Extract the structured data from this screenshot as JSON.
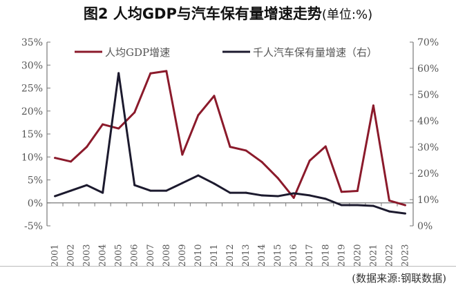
{
  "title": "图2 人均GDP与汽车保有量增速走势",
  "title_unit": "(单位:%)",
  "source": "(数据来源:钢联数据)",
  "chart_data": {
    "type": "line",
    "title": "图2 人均GDP与汽车保有量增速走势(单位:%)",
    "categories": [
      "2001",
      "2002",
      "2003",
      "2004",
      "2005",
      "2006",
      "2007",
      "2008",
      "2009",
      "2010",
      "2011",
      "2012",
      "2013",
      "2014",
      "2015",
      "2016",
      "2017",
      "2018",
      "2019",
      "2020",
      "2021",
      "2022",
      "2023"
    ],
    "left_axis": {
      "ylim": [
        -5,
        35
      ],
      "ticks": [
        "-5%",
        "0%",
        "5%",
        "10%",
        "15%",
        "20%",
        "25%",
        "30%",
        "35%"
      ]
    },
    "right_axis": {
      "ylim": [
        0,
        70
      ],
      "ticks": [
        "0%",
        "10%",
        "20%",
        "30%",
        "40%",
        "50%",
        "60%",
        "70%"
      ]
    },
    "grid": false,
    "legend": "top",
    "series": [
      {
        "name": "人均GDP增速",
        "axis": "left",
        "color": "#8b1a2b",
        "values": [
          9.8,
          9.0,
          12.2,
          17.1,
          16.2,
          19.7,
          28.2,
          28.7,
          10.5,
          19.1,
          23.3,
          12.2,
          11.4,
          8.9,
          5.4,
          1.1,
          9.2,
          12.3,
          2.4,
          2.6,
          21.2,
          0.5,
          -0.5
        ]
      },
      {
        "name": "千人汽车保有量增速（右）",
        "axis": "right",
        "color": "#1c1a2e",
        "values": [
          11.3,
          13.4,
          15.5,
          12.6,
          58.2,
          15.5,
          13.4,
          13.4,
          16.3,
          19.2,
          16.1,
          12.6,
          12.6,
          11.6,
          11.3,
          12.4,
          11.6,
          10.3,
          7.9,
          7.9,
          7.6,
          5.5,
          4.7
        ]
      }
    ]
  }
}
